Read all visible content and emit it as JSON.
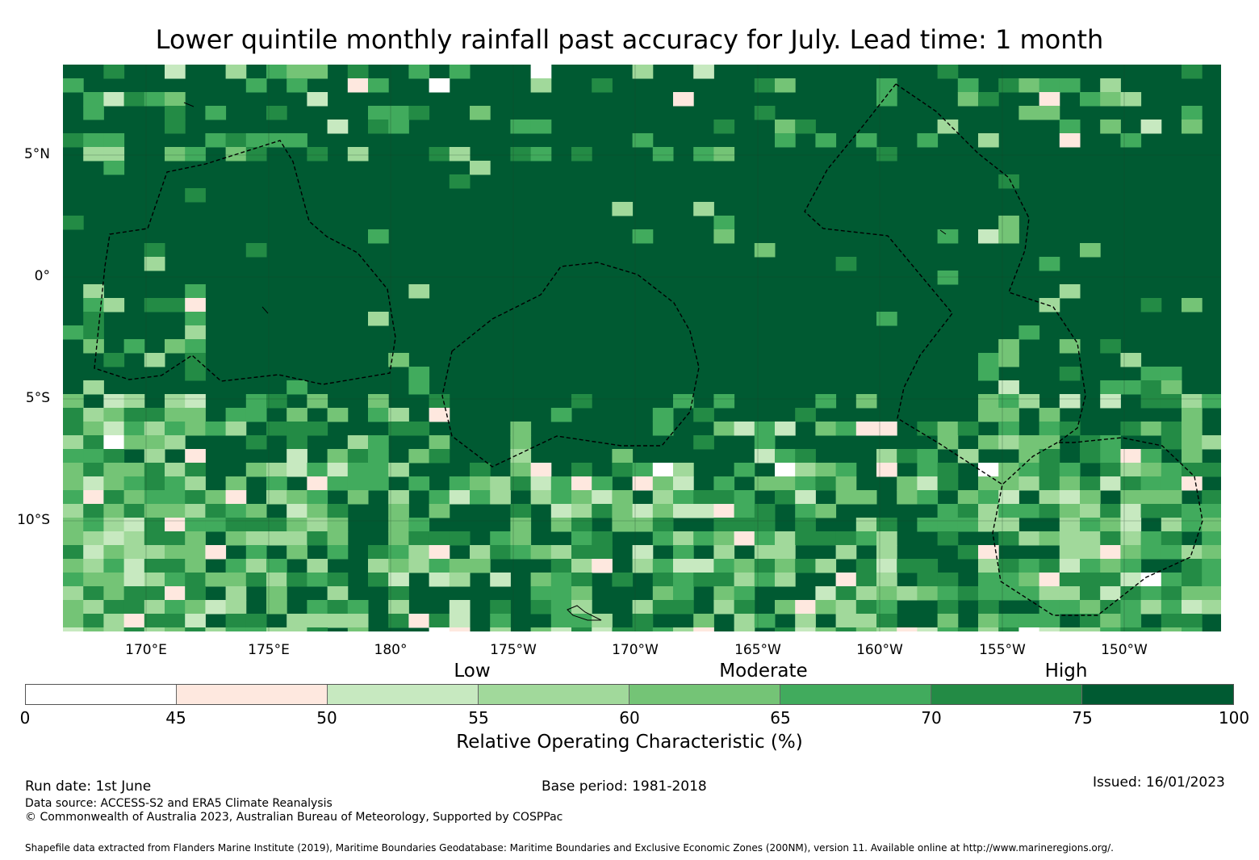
{
  "title": "Lower quintile monthly rainfall past accuracy for July. Lead time: 1 month",
  "map": {
    "lat_labels": [
      "5°N",
      "0°",
      "5°S",
      "10°S"
    ],
    "lon_labels": [
      "170°E",
      "175°E",
      "180°",
      "175°W",
      "170°W",
      "165°W",
      "160°W",
      "155°W",
      "150°W"
    ]
  },
  "legend": {
    "categories": [
      "Low",
      "Moderate",
      "High"
    ],
    "ticks": [
      "0",
      "45",
      "50",
      "55",
      "60",
      "65",
      "70",
      "75",
      "100"
    ],
    "colors": [
      "#ffffff",
      "#fee8df",
      "#c7e9c0",
      "#a1d99b",
      "#74c476",
      "#41ab5d",
      "#238b45",
      "#005a32"
    ],
    "axis_label": "Relative Operating Characteristic (%)"
  },
  "footer": {
    "run_date": "Run date: 1st June",
    "base_period": "Base period: 1981-2018",
    "issued": "Issued: 16/01/2023",
    "data_source": "Data source: ACCESS-S2 and ERA5 Climate Reanalysis",
    "copyright": "© Commonwealth of Australia 2023, Australian Bureau of Meteorology, Supported by COSPPac",
    "shapefile": "Shapefile data extracted from Flanders Marine Institute (2019), Maritime Boundaries Geodatabase: Maritime Boundaries and Exclusive Economic Zones (200NM), version 11. Available online at http://www.marineregions.org/."
  }
}
